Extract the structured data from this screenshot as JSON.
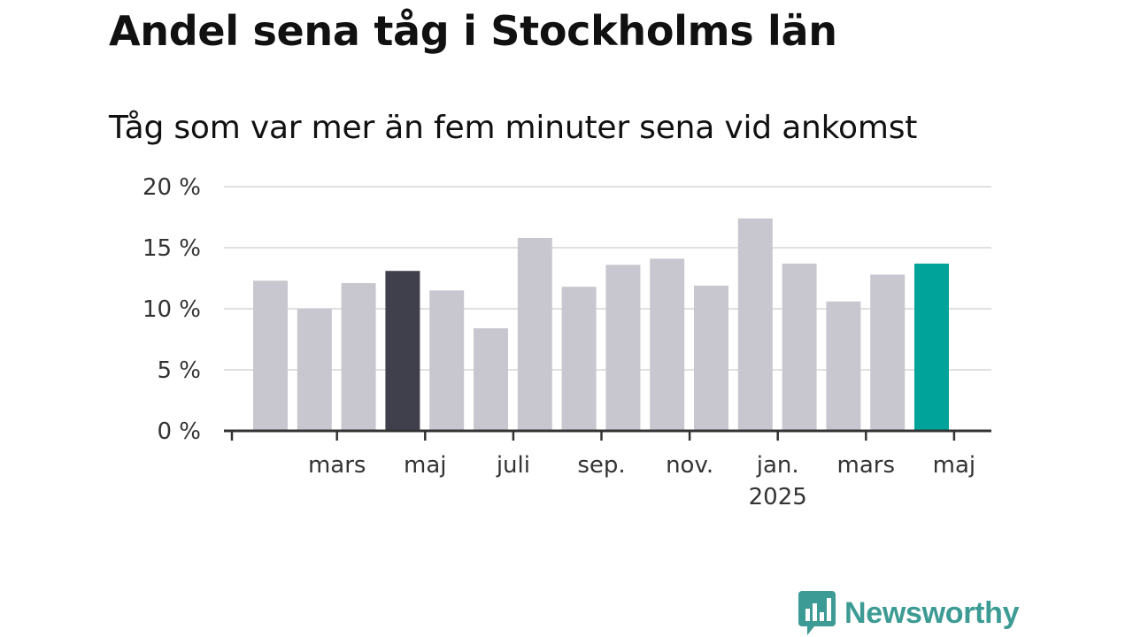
{
  "title": "Andel sena tåg i Stockholms län",
  "subtitle": "Tåg som var mer än fem minuter sena vid ankomst",
  "brand": {
    "name": "Newsworthy",
    "color": "#3c9b94",
    "icon": "newsworthy-logo-icon"
  },
  "colors": {
    "default_bar": "#c8c7cf",
    "highlight_past": "#403f4c",
    "highlight_latest": "#00a39a",
    "grid": "#e0e0e0",
    "axis": "#333333"
  },
  "chart_data": {
    "type": "bar",
    "title": "",
    "xlabel": "",
    "ylabel": "",
    "ylim": [
      0,
      20
    ],
    "y_ticks": [
      0,
      5,
      10,
      15,
      20
    ],
    "y_tick_labels": [
      "0 %",
      "5 %",
      "10 %",
      "15 %",
      "20 %"
    ],
    "grid": true,
    "categories": [
      "2024-01",
      "2024-02",
      "2024-03",
      "2024-04",
      "2024-05",
      "2024-06",
      "2024-07",
      "2024-08",
      "2024-09",
      "2024-10",
      "2024-11",
      "2024-12",
      "2025-01",
      "2025-02",
      "2025-03",
      "2025-04",
      "2025-05"
    ],
    "values": [
      12.3,
      10.0,
      12.1,
      13.1,
      11.5,
      8.4,
      15.8,
      11.8,
      13.6,
      14.1,
      11.9,
      17.4,
      13.7,
      10.6,
      12.8,
      13.7,
      null
    ],
    "x_tick_labels": [
      {
        "category": "2024-03",
        "label": "mars",
        "sublabel": ""
      },
      {
        "category": "2024-05",
        "label": "maj",
        "sublabel": ""
      },
      {
        "category": "2024-07",
        "label": "juli",
        "sublabel": ""
      },
      {
        "category": "2024-09",
        "label": "sep.",
        "sublabel": ""
      },
      {
        "category": "2024-11",
        "label": "nov.",
        "sublabel": ""
      },
      {
        "category": "2025-01",
        "label": "jan.",
        "sublabel": "2025"
      },
      {
        "category": "2025-03",
        "label": "mars",
        "sublabel": ""
      },
      {
        "category": "2025-05",
        "label": "maj",
        "sublabel": ""
      }
    ],
    "highlights": [
      {
        "category": "2024-04",
        "style": "highlight_past"
      },
      {
        "category": "2025-04",
        "style": "highlight_latest"
      }
    ]
  }
}
